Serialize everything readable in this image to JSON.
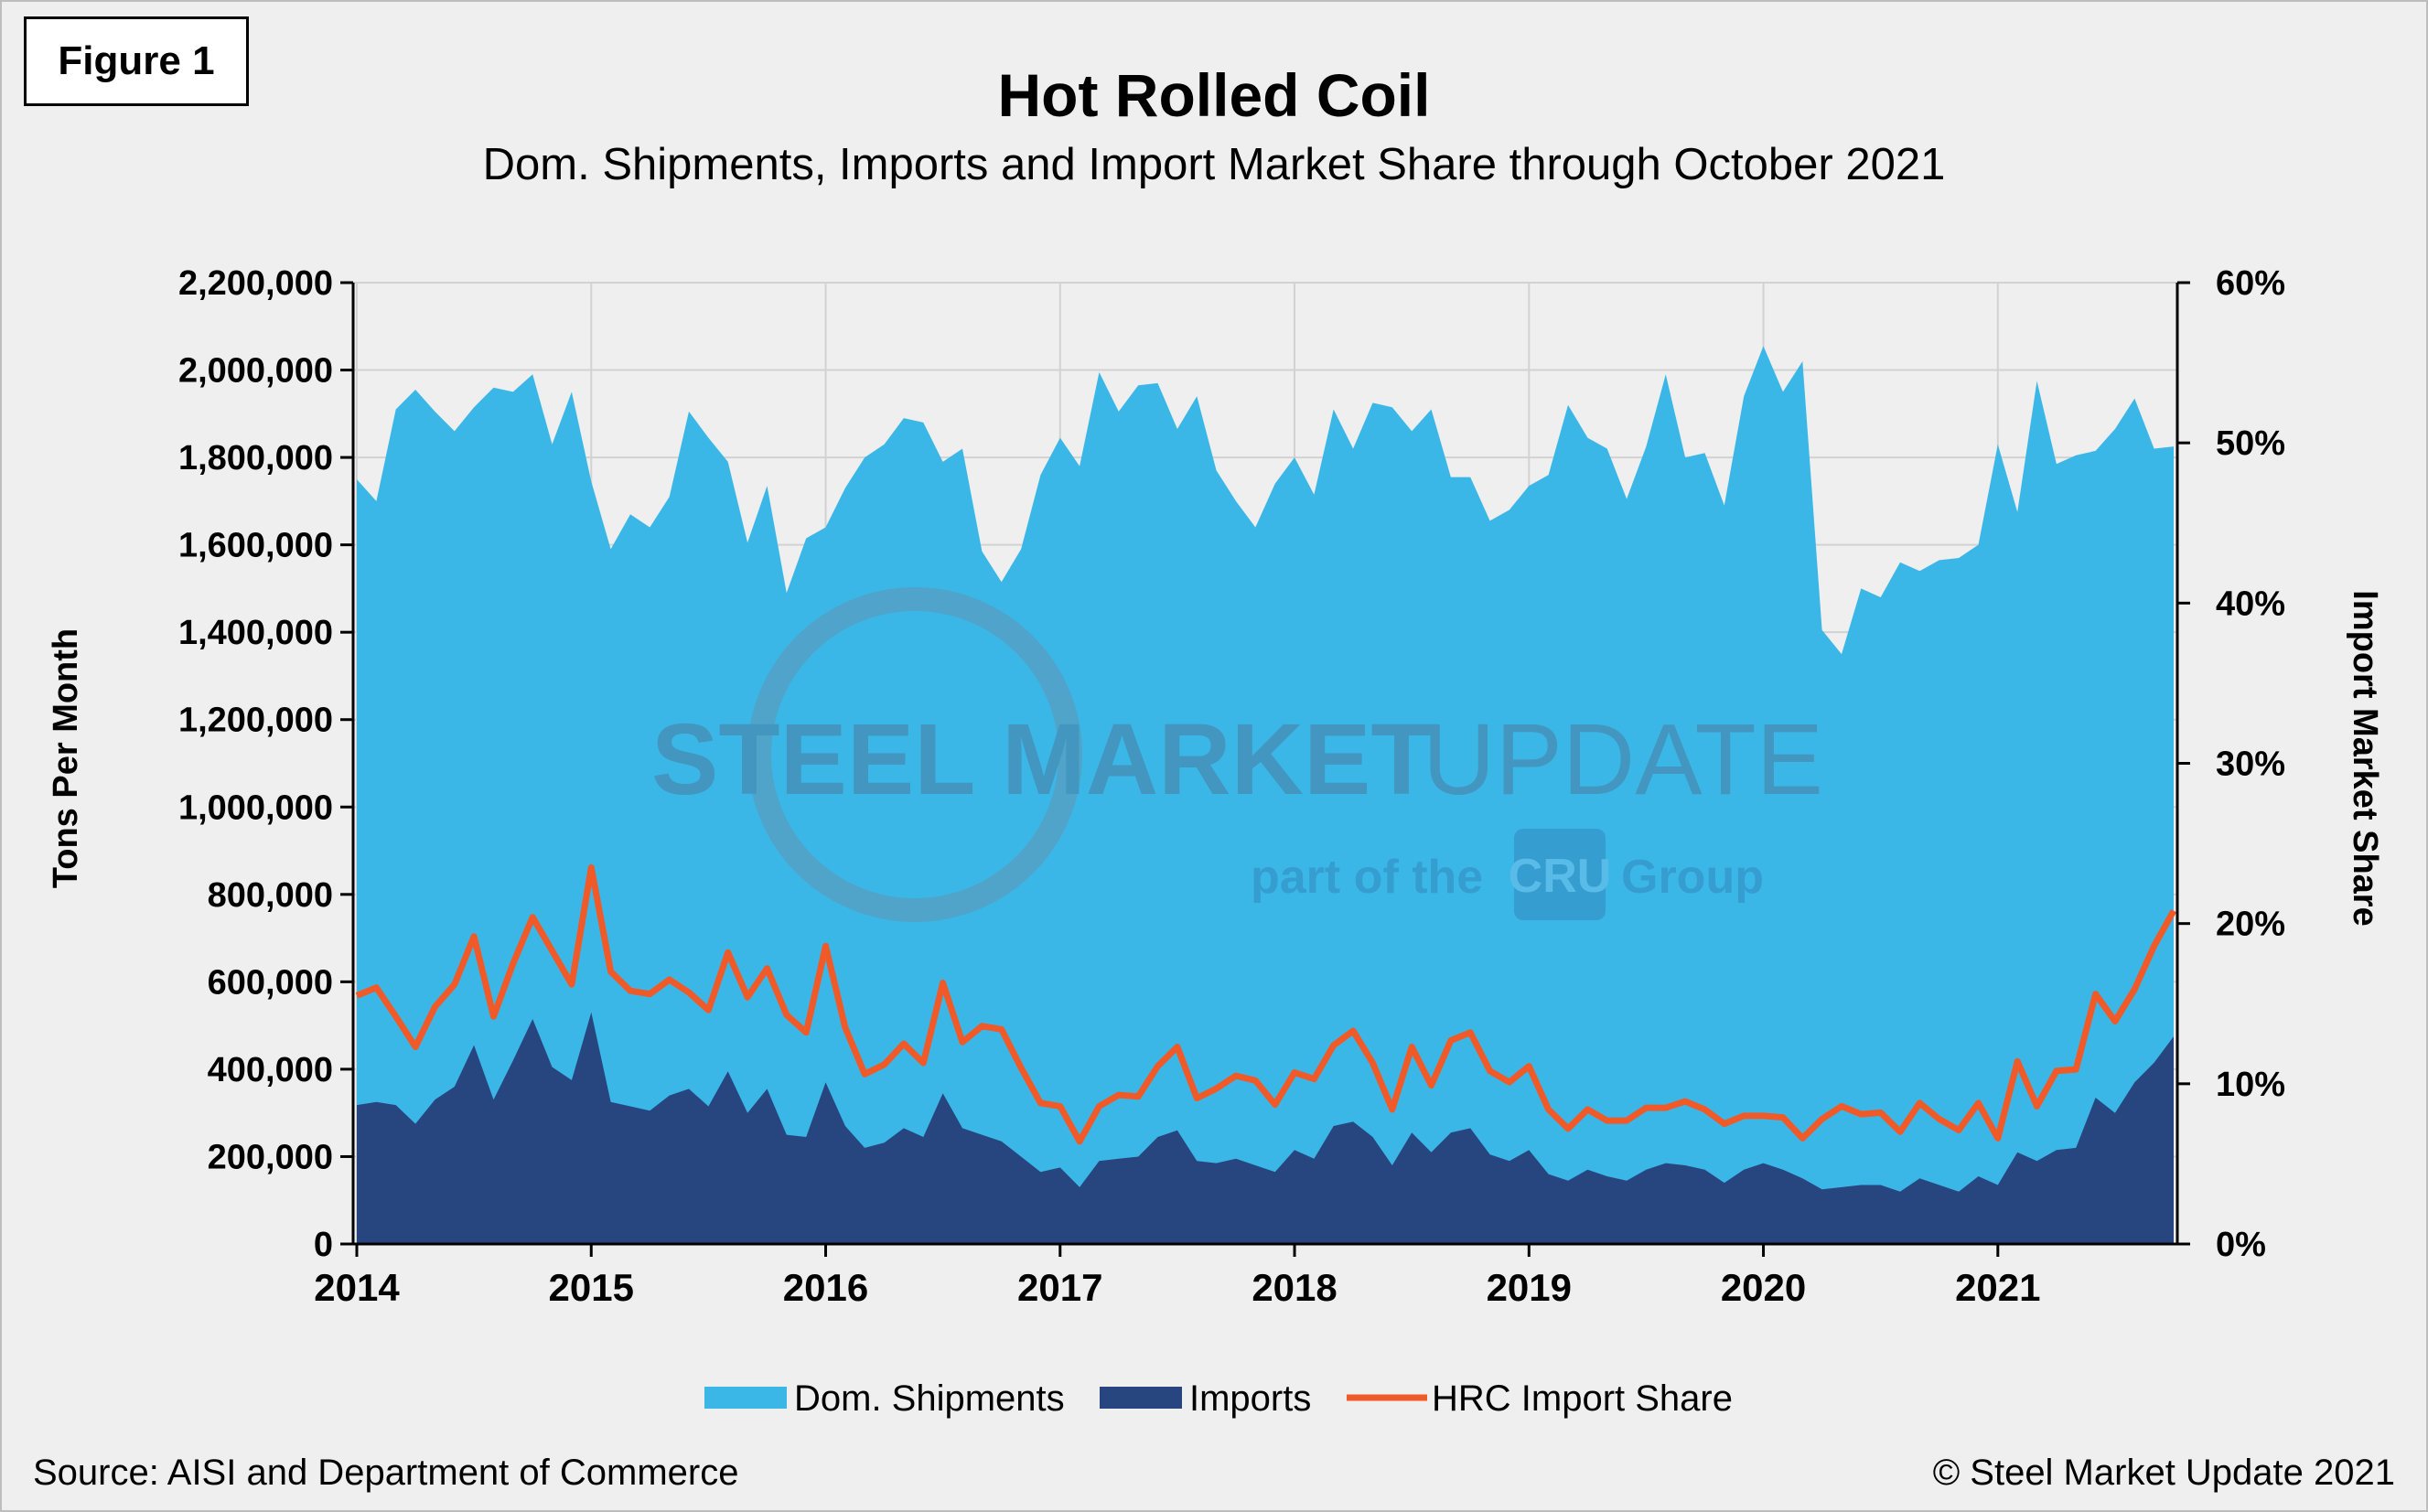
{
  "figure_label": "Figure 1",
  "source": "Source: AISI and Department of Commerce",
  "copyright": "© Steel Market Update 2021",
  "watermark": {
    "main_bold": "STEEL MARKET",
    "main_light": "UPDATE",
    "part_of": "part of the",
    "cru": "CRU",
    "group": "Group"
  },
  "chart_data": {
    "type": "area",
    "title": "Hot Rolled Coil",
    "subtitle": "Dom. Shipments, Imports and Import Market Share through October 2021",
    "ylabel": "Tons Per Month",
    "y2label": "Import Market Share",
    "ylim": [
      0,
      2200000
    ],
    "y2lim": [
      0,
      60
    ],
    "yticks": [
      "0",
      "200,000",
      "400,000",
      "600,000",
      "800,000",
      "1,000,000",
      "1,200,000",
      "1,400,000",
      "1,600,000",
      "1,800,000",
      "2,000,000",
      "2,200,000"
    ],
    "y2ticks": [
      "0%",
      "10%",
      "20%",
      "30%",
      "40%",
      "50%",
      "60%"
    ],
    "xticks": [
      "2014",
      "2015",
      "2016",
      "2017",
      "2018",
      "2019",
      "2020",
      "2021"
    ],
    "x_start": "2014-01",
    "x_end": "2021-10",
    "grid": true,
    "legend_position": "bottom",
    "colors": {
      "dom": "#3bb7e7",
      "imports": "#27467f",
      "share": "#f05a28"
    },
    "series": [
      {
        "name": "Dom. Shipments",
        "kind": "area",
        "axis": "left",
        "values": [
          1750000,
          1700000,
          1910000,
          1955000,
          1905000,
          1860000,
          1915000,
          1960000,
          1950000,
          1990000,
          1830000,
          1950000,
          1745000,
          1590000,
          1670000,
          1640000,
          1710000,
          1905000,
          1845000,
          1790000,
          1605000,
          1735000,
          1490000,
          1615000,
          1640000,
          1730000,
          1800000,
          1830000,
          1890000,
          1880000,
          1790000,
          1820000,
          1585000,
          1515000,
          1590000,
          1760000,
          1845000,
          1780000,
          1995000,
          1905000,
          1965000,
          1970000,
          1865000,
          1940000,
          1770000,
          1700000,
          1640000,
          1740000,
          1800000,
          1715000,
          1910000,
          1820000,
          1925000,
          1915000,
          1860000,
          1910000,
          1755000,
          1755000,
          1655000,
          1680000,
          1735000,
          1760000,
          1920000,
          1845000,
          1820000,
          1705000,
          1825000,
          1990000,
          1800000,
          1810000,
          1690000,
          1940000,
          2055000,
          1950000,
          2020000,
          1405000,
          1350000,
          1500000,
          1480000,
          1560000,
          1540000,
          1565000,
          1570000,
          1600000,
          1830000,
          1675000,
          1975000,
          1785000,
          1805000,
          1815000,
          1865000,
          1935000,
          1820000,
          1825000
        ]
      },
      {
        "name": "Imports",
        "kind": "area",
        "axis": "left",
        "values": [
          318000,
          325000,
          318000,
          275000,
          330000,
          360000,
          455000,
          330000,
          420000,
          515000,
          405000,
          375000,
          530000,
          325000,
          315000,
          305000,
          340000,
          355000,
          315000,
          395000,
          300000,
          355000,
          250000,
          245000,
          370000,
          270000,
          220000,
          232000,
          265000,
          245000,
          345000,
          265000,
          250000,
          235000,
          200000,
          165000,
          175000,
          130000,
          190000,
          195000,
          200000,
          245000,
          260000,
          190000,
          185000,
          195000,
          180000,
          165000,
          215000,
          195000,
          270000,
          280000,
          245000,
          180000,
          255000,
          210000,
          255000,
          265000,
          205000,
          190000,
          215000,
          160000,
          145000,
          170000,
          155000,
          145000,
          170000,
          185000,
          180000,
          170000,
          140000,
          170000,
          185000,
          170000,
          150000,
          125000,
          130000,
          135000,
          135000,
          120000,
          150000,
          135000,
          120000,
          155000,
          135000,
          210000,
          190000,
          215000,
          220000,
          335000,
          300000,
          370000,
          415000,
          475000
        ]
      },
      {
        "name": "HRC Import Share",
        "kind": "line",
        "axis": "right",
        "values": [
          15.5,
          16.0,
          14.2,
          12.3,
          14.8,
          16.2,
          19.2,
          14.2,
          17.5,
          20.4,
          18.3,
          16.2,
          23.5,
          17.0,
          15.8,
          15.6,
          16.5,
          15.7,
          14.6,
          18.2,
          15.4,
          17.2,
          14.3,
          13.2,
          18.6,
          13.5,
          10.6,
          11.2,
          12.5,
          11.3,
          16.3,
          12.6,
          13.6,
          13.4,
          11.0,
          8.8,
          8.6,
          6.4,
          8.6,
          9.3,
          9.2,
          11.1,
          12.3,
          9.1,
          9.7,
          10.5,
          10.2,
          8.7,
          10.7,
          10.3,
          12.4,
          13.3,
          11.3,
          8.4,
          12.3,
          9.9,
          12.7,
          13.2,
          10.8,
          10.1,
          11.1,
          8.4,
          7.2,
          8.4,
          7.7,
          7.7,
          8.5,
          8.5,
          8.9,
          8.4,
          7.5,
          8.0,
          8.0,
          7.9,
          6.6,
          7.8,
          8.6,
          8.1,
          8.2,
          7.0,
          8.8,
          7.8,
          7.1,
          8.8,
          6.6,
          11.4,
          8.6,
          10.8,
          10.9,
          15.6,
          13.9,
          15.9,
          18.6,
          20.8
        ]
      }
    ]
  }
}
